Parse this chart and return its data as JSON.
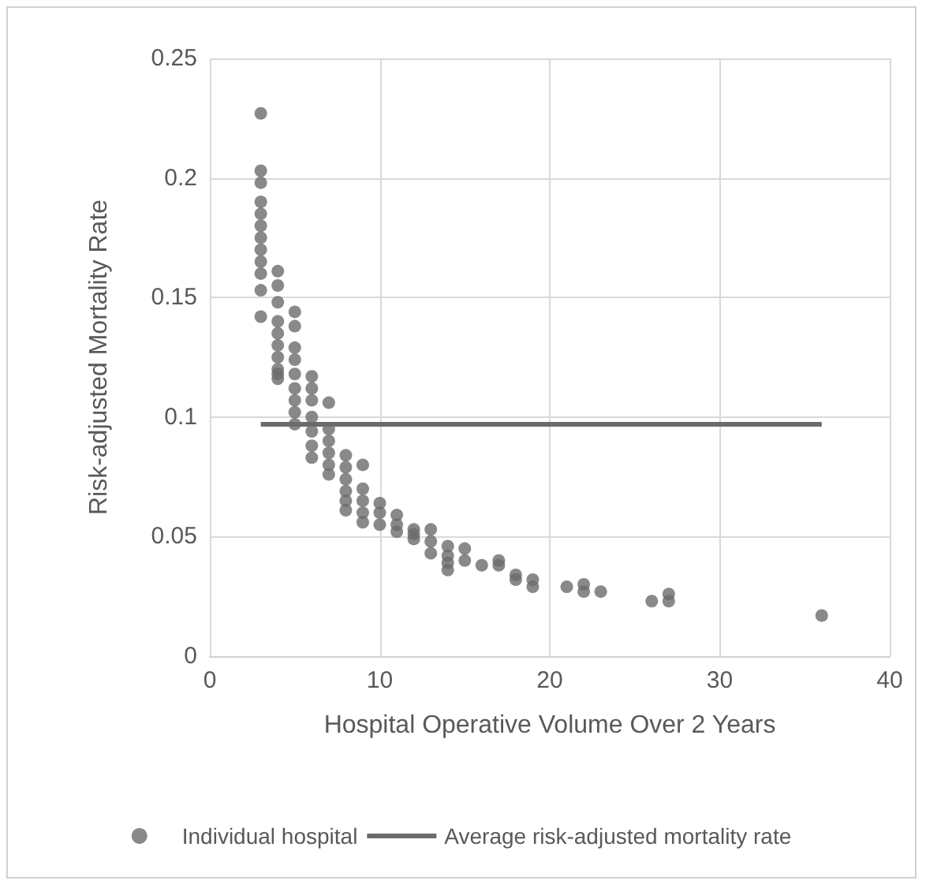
{
  "chart_data": {
    "type": "scatter",
    "xlabel": "Hospital Operative Volume Over 2 Years",
    "ylabel": "Risk-adjusted Mortality Rate",
    "xlim": [
      0,
      40
    ],
    "xticks": [
      0,
      10,
      20,
      30,
      40
    ],
    "ylim": [
      0,
      0.25
    ],
    "yticks": [
      0,
      0.05,
      0.1,
      0.15,
      0.2,
      0.25
    ],
    "grid": true,
    "legend": "bottom",
    "series": [
      {
        "name": "Individual hospital",
        "marker": "circle",
        "color": "#6b6b6b",
        "x": [
          3,
          3,
          3,
          3,
          3,
          3,
          3,
          3,
          3,
          3,
          3,
          3,
          4,
          4,
          4,
          4,
          4,
          4,
          4,
          4,
          4,
          4,
          5,
          5,
          5,
          5,
          5,
          5,
          5,
          5,
          5,
          6,
          6,
          6,
          6,
          6,
          6,
          6,
          7,
          7,
          7,
          7,
          7,
          7,
          8,
          8,
          8,
          8,
          8,
          8,
          9,
          9,
          9,
          9,
          9,
          10,
          10,
          10,
          11,
          11,
          11,
          12,
          12,
          12,
          13,
          13,
          13,
          14,
          14,
          14,
          14,
          15,
          15,
          16,
          17,
          17,
          18,
          18,
          19,
          19,
          21,
          22,
          22,
          23,
          26,
          27,
          27,
          36
        ],
        "values": [
          0.227,
          0.203,
          0.198,
          0.19,
          0.185,
          0.18,
          0.175,
          0.17,
          0.165,
          0.16,
          0.153,
          0.142,
          0.161,
          0.155,
          0.148,
          0.14,
          0.135,
          0.13,
          0.125,
          0.12,
          0.118,
          0.116,
          0.144,
          0.138,
          0.129,
          0.124,
          0.118,
          0.112,
          0.107,
          0.102,
          0.097,
          0.117,
          0.112,
          0.107,
          0.1,
          0.094,
          0.088,
          0.083,
          0.106,
          0.095,
          0.09,
          0.085,
          0.08,
          0.076,
          0.084,
          0.079,
          0.074,
          0.069,
          0.065,
          0.061,
          0.08,
          0.07,
          0.065,
          0.06,
          0.056,
          0.064,
          0.06,
          0.055,
          0.059,
          0.055,
          0.052,
          0.053,
          0.051,
          0.049,
          0.053,
          0.048,
          0.043,
          0.046,
          0.042,
          0.039,
          0.036,
          0.045,
          0.04,
          0.038,
          0.04,
          0.038,
          0.034,
          0.032,
          0.032,
          0.029,
          0.029,
          0.03,
          0.027,
          0.027,
          0.023,
          0.026,
          0.023,
          0.017
        ]
      },
      {
        "name": "Average risk-adjusted mortality rate",
        "type": "line",
        "marker": "none",
        "line_style": "solid",
        "color": "#6b6b6b",
        "x": [
          3,
          36
        ],
        "values": [
          0.097,
          0.097
        ]
      }
    ]
  }
}
